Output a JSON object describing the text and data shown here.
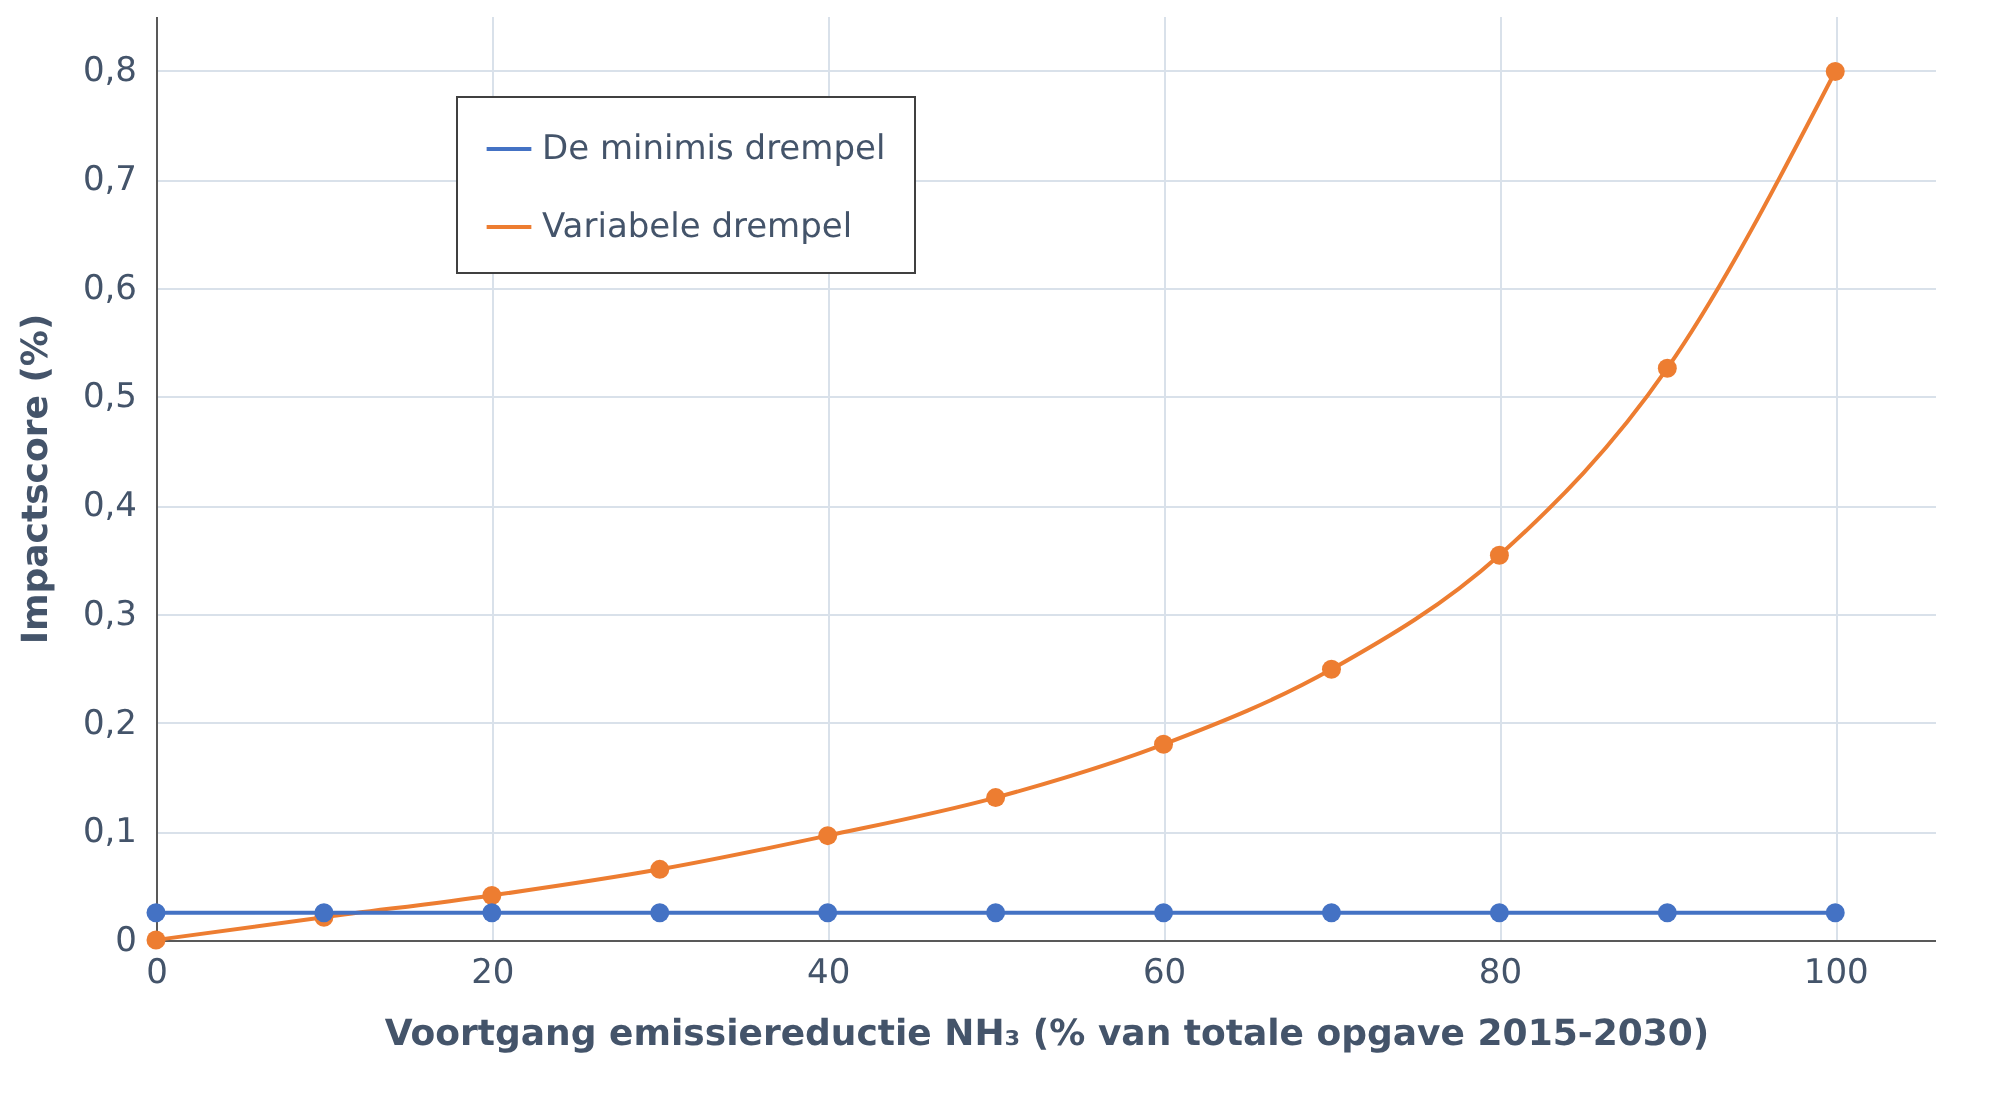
{
  "chart_data": {
    "type": "line",
    "xlabel": "Voortgang emissiereductie NH₃ (% van totale opgave 2015-2030)",
    "ylabel": "Impactscore (%)",
    "x": [
      0,
      10,
      20,
      30,
      40,
      50,
      60,
      70,
      80,
      90,
      100
    ],
    "series": [
      {
        "name": "De minimis drempel",
        "color": "#4472c4",
        "values": [
          0.025,
          0.025,
          0.025,
          0.025,
          0.025,
          0.025,
          0.025,
          0.025,
          0.025,
          0.025,
          0.025
        ]
      },
      {
        "name": "Variabele drempel",
        "color": "#ed7d31",
        "values": [
          0,
          0.021,
          0.041,
          0.065,
          0.096,
          0.131,
          0.18,
          0.249,
          0.354,
          0.526,
          0.799
        ]
      }
    ],
    "xlim": [
      0,
      106
    ],
    "xticks": [
      0,
      20,
      40,
      60,
      80,
      100
    ],
    "ylim": [
      0,
      0.85
    ],
    "yticks": [
      0,
      {
        "value": 0.1,
        "label": "0,1"
      },
      {
        "value": 0.2,
        "label": "0,2"
      },
      {
        "value": 0.3,
        "label": "0,3"
      },
      {
        "value": 0.4,
        "label": "0,4"
      },
      {
        "value": 0.5,
        "label": "0,5"
      },
      {
        "value": 0.6,
        "label": "0,6"
      },
      {
        "value": 0.7,
        "label": "0,7"
      },
      {
        "value": 0.8,
        "label": "0,8"
      }
    ],
    "grid": true,
    "legend": "top left",
    "marker": "circle",
    "line_style": "solid"
  }
}
